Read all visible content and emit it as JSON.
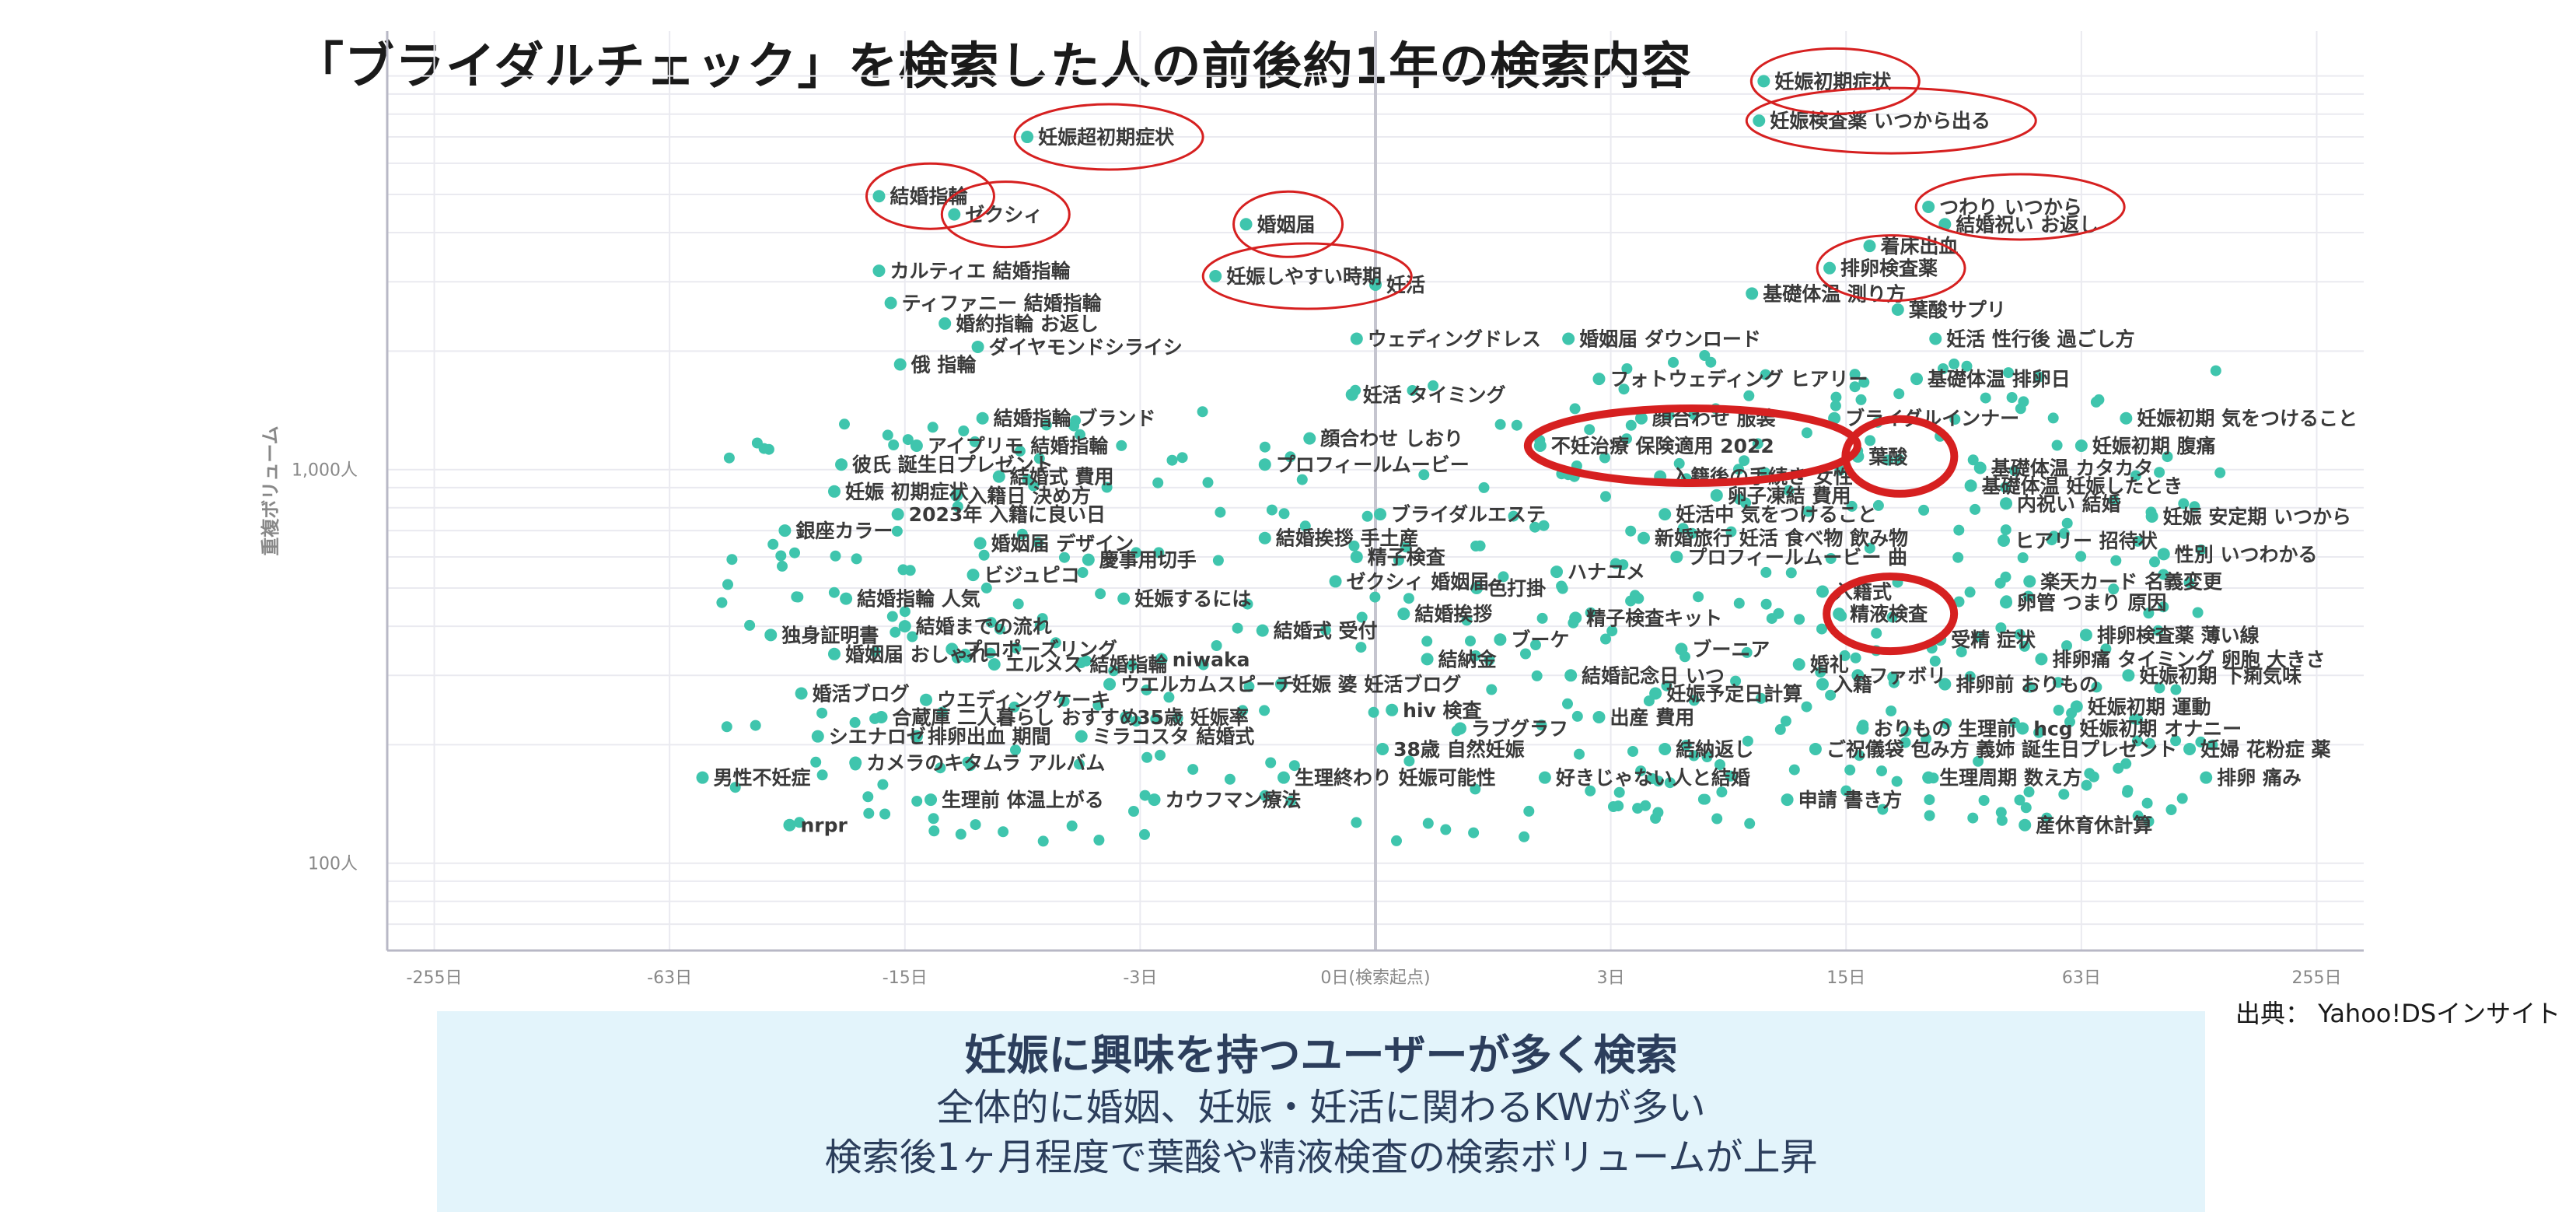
{
  "title": "「ブライダルチェック」を検索した人の前後約1年の検索内容",
  "source": "出典： Yahoo!DSインサイト",
  "summary": {
    "heading": "妊娠に興味を持つユーザーが多く検索",
    "line1": "全体的に婚姻、妊娠・妊活に関わるKWが多い",
    "line2": "検索後1ヶ月程度で葉酸や精液検査の検索ボリュームが上昇"
  },
  "colors": {
    "point": "#3fc5ad",
    "highlight": "#d62020",
    "axis": "#b8b8c6",
    "grid": "#eaeaf0",
    "text": "#3a3a3a",
    "summary_bg": "#e3f4fb",
    "summary_text": "#2c3e5c"
  },
  "chart_data": {
    "type": "scatter",
    "title": "「ブライダルチェック」を検索した人の前後約1年の検索内容",
    "xlabel": "",
    "ylabel": "重複ボリューム",
    "x_ticks": [
      "-255日",
      "-63日",
      "-15日",
      "-3日",
      "0日(検索起点)",
      "3日",
      "15日",
      "63日",
      "255日"
    ],
    "xlim": [
      -0.2,
      8.2
    ],
    "y_scale": "log",
    "y_ticks": [
      {
        "value": 100,
        "label": "100人"
      },
      {
        "value": 1000,
        "label": "1,000人"
      }
    ],
    "ylim": [
      60,
      13000
    ],
    "grid": true,
    "legend": "none",
    "labeled_points": [
      {
        "label": "妊娠初期症状",
        "x": 5.65,
        "y": 9700,
        "circled": true
      },
      {
        "label": "妊娠検査薬 いつから出る",
        "x": 5.63,
        "y": 7700,
        "circled": true
      },
      {
        "label": "妊娠超初期症状",
        "x": 2.52,
        "y": 7000,
        "circled": true
      },
      {
        "label": "結婚指輪",
        "x": 1.89,
        "y": 4950,
        "circled": true
      },
      {
        "label": "ゼクシィ",
        "x": 2.21,
        "y": 4450,
        "circled": true
      },
      {
        "label": "婚姻届",
        "x": 3.45,
        "y": 4200,
        "circled": true
      },
      {
        "label": "つわり いつから",
        "x": 6.35,
        "y": 4650,
        "circled": true
      },
      {
        "label": "結婚祝い お返し",
        "x": 6.42,
        "y": 4200,
        "circled": false
      },
      {
        "label": "着床出血",
        "x": 6.1,
        "y": 3700,
        "circled": false
      },
      {
        "label": "排卵検査薬",
        "x": 5.93,
        "y": 3250,
        "circled": true
      },
      {
        "label": "カルティエ 結婚指輪",
        "x": 1.89,
        "y": 3200,
        "circled": false
      },
      {
        "label": "妊娠しやすい時期",
        "x": 3.32,
        "y": 3100,
        "circled": true
      },
      {
        "label": "妊活",
        "x": 4.0,
        "y": 2950,
        "circled": false
      },
      {
        "label": "基礎体温 測り方",
        "x": 5.6,
        "y": 2800,
        "circled": false
      },
      {
        "label": "ティファニー 結婚指輪",
        "x": 1.94,
        "y": 2650,
        "circled": false
      },
      {
        "label": "葉酸サプリ",
        "x": 6.22,
        "y": 2550,
        "circled": false
      },
      {
        "label": "婚約指輪 お返し",
        "x": 2.17,
        "y": 2350,
        "circled": false
      },
      {
        "label": "ウェディングドレス",
        "x": 3.92,
        "y": 2150,
        "circled": false
      },
      {
        "label": "婚姻届 ダウンロード",
        "x": 4.82,
        "y": 2150,
        "circled": false
      },
      {
        "label": "妊活 性行後 過ごし方",
        "x": 6.38,
        "y": 2150,
        "circled": false
      },
      {
        "label": "ダイヤモンドシライシ",
        "x": 2.31,
        "y": 2050,
        "circled": false
      },
      {
        "label": "俄 指輪",
        "x": 1.98,
        "y": 1850,
        "circled": false
      },
      {
        "label": "フォトウェディング ヒアリー",
        "x": 4.95,
        "y": 1700,
        "circled": false
      },
      {
        "label": "基礎体温 排卵日",
        "x": 6.3,
        "y": 1700,
        "circled": false
      },
      {
        "label": "妊活 タイミング",
        "x": 3.9,
        "y": 1550,
        "circled": false
      },
      {
        "label": "結婚指輪 ブランド",
        "x": 2.33,
        "y": 1350,
        "circled": false
      },
      {
        "label": "顔合わせ 服装",
        "x": 5.13,
        "y": 1350,
        "circled": false
      },
      {
        "label": "ブライダルインナー",
        "x": 5.95,
        "y": 1350,
        "circled": false
      },
      {
        "label": "妊娠初期 気をつけること",
        "x": 7.19,
        "y": 1350,
        "circled": false
      },
      {
        "label": "顔合わせ しおり",
        "x": 3.72,
        "y": 1200,
        "circled": false
      },
      {
        "label": "アイプリモ 結婚指輪",
        "x": 2.05,
        "y": 1150,
        "circled": false
      },
      {
        "label": "不妊治療 保険適用 2022",
        "x": 4.7,
        "y": 1150,
        "circled": true
      },
      {
        "label": "妊娠初期 腹痛",
        "x": 7.0,
        "y": 1150,
        "circled": false
      },
      {
        "label": "葉酸",
        "x": 6.05,
        "y": 1080,
        "circled": true
      },
      {
        "label": "彼氏 誕生日プレゼント",
        "x": 1.73,
        "y": 1030,
        "circled": false
      },
      {
        "label": "プロフィールムービー",
        "x": 3.53,
        "y": 1030,
        "circled": false
      },
      {
        "label": "基礎体温 カタカタ",
        "x": 6.57,
        "y": 1010,
        "circled": false
      },
      {
        "label": "入籍後の手続き 女性",
        "x": 5.21,
        "y": 960,
        "circled": false
      },
      {
        "label": "結婚式 費用",
        "x": 2.4,
        "y": 960,
        "circled": false
      },
      {
        "label": "基礎体温 妊娠したとき",
        "x": 6.53,
        "y": 910,
        "circled": false
      },
      {
        "label": "妊娠 初期症状",
        "x": 1.7,
        "y": 880,
        "circled": false
      },
      {
        "label": "入籍日 決め方",
        "x": 2.22,
        "y": 860,
        "circled": false
      },
      {
        "label": "卵子凍結 費用",
        "x": 5.45,
        "y": 860,
        "circled": false
      },
      {
        "label": "内祝い 結婚",
        "x": 6.68,
        "y": 820,
        "circled": false
      },
      {
        "label": "2023年 入籍に良い日",
        "x": 1.97,
        "y": 770,
        "circled": false
      },
      {
        "label": "ブライダルエステ",
        "x": 4.02,
        "y": 770,
        "circled": false
      },
      {
        "label": "妊活中 気をつけること",
        "x": 5.23,
        "y": 770,
        "circled": false
      },
      {
        "label": "妊娠 安定期 いつから",
        "x": 7.3,
        "y": 760,
        "circled": false
      },
      {
        "label": "銀座カラー",
        "x": 1.49,
        "y": 700,
        "circled": false
      },
      {
        "label": "結婚挨拶 手土産",
        "x": 3.53,
        "y": 670,
        "circled": false
      },
      {
        "label": "新婚旅行 妊活 食べ物 飲み物",
        "x": 5.14,
        "y": 670,
        "circled": false
      },
      {
        "label": "ヒアリー 招待状",
        "x": 6.67,
        "y": 660,
        "circled": false
      },
      {
        "label": "婚姻届 デザイン",
        "x": 2.32,
        "y": 650,
        "circled": false
      },
      {
        "label": "精子検査",
        "x": 3.92,
        "y": 600,
        "circled": false
      },
      {
        "label": "慶事用切手",
        "x": 2.78,
        "y": 590,
        "circled": false
      },
      {
        "label": "プロフィールムービー 曲",
        "x": 5.28,
        "y": 600,
        "circled": false
      },
      {
        "label": "性別 いつわかる",
        "x": 7.35,
        "y": 610,
        "circled": false
      },
      {
        "label": "ハナユメ",
        "x": 4.77,
        "y": 550,
        "circled": false
      },
      {
        "label": "ビジュピコ",
        "x": 2.29,
        "y": 540,
        "circled": false
      },
      {
        "label": "ゼクシィ 婚姻届",
        "x": 3.83,
        "y": 520,
        "circled": false
      },
      {
        "label": "楽天カード 名義変更",
        "x": 6.78,
        "y": 520,
        "circled": false
      },
      {
        "label": "色打掛",
        "x": 4.43,
        "y": 500,
        "circled": false
      },
      {
        "label": "入籍式",
        "x": 5.9,
        "y": 490,
        "circled": false
      },
      {
        "label": "結婚指輪 人気",
        "x": 1.75,
        "y": 470,
        "circled": false
      },
      {
        "label": "妊娠するには",
        "x": 2.93,
        "y": 470,
        "circled": false
      },
      {
        "label": "卵管 つまり 原因",
        "x": 6.68,
        "y": 460,
        "circled": false
      },
      {
        "label": "精液検査",
        "x": 5.97,
        "y": 430,
        "circled": true
      },
      {
        "label": "結婚挨拶",
        "x": 4.12,
        "y": 430,
        "circled": false
      },
      {
        "label": "精子検査キット",
        "x": 4.85,
        "y": 420,
        "circled": false
      },
      {
        "label": "結婚までの流れ",
        "x": 2.0,
        "y": 400,
        "circled": false
      },
      {
        "label": "結婚式 受付",
        "x": 3.52,
        "y": 390,
        "circled": false
      },
      {
        "label": "排卵検査薬 薄い線",
        "x": 7.02,
        "y": 380,
        "circled": false
      },
      {
        "label": "独身証明書",
        "x": 1.43,
        "y": 380,
        "circled": false
      },
      {
        "label": "ブーケ",
        "x": 4.53,
        "y": 370,
        "circled": false
      },
      {
        "label": "受精 症状",
        "x": 6.4,
        "y": 370,
        "circled": false
      },
      {
        "label": "プロポーズリング",
        "x": 2.2,
        "y": 350,
        "circled": false
      },
      {
        "label": "ブーニア",
        "x": 5.3,
        "y": 350,
        "circled": false
      },
      {
        "label": "婚姻届 おしゃれ",
        "x": 1.7,
        "y": 340,
        "circled": false
      },
      {
        "label": "結納金",
        "x": 4.22,
        "y": 330,
        "circled": false
      },
      {
        "label": "niwaka",
        "x": 3.09,
        "y": 330,
        "circled": false
      },
      {
        "label": "排卵痛 タイミング 卵胞 大きさ",
        "x": 6.83,
        "y": 330,
        "circled": false
      },
      {
        "label": "エルメス 結婚指輪",
        "x": 2.38,
        "y": 320,
        "circled": false
      },
      {
        "label": "婚礼",
        "x": 5.8,
        "y": 320,
        "circled": false
      },
      {
        "label": "結婚記念日 いつ",
        "x": 4.83,
        "y": 300,
        "circled": false
      },
      {
        "label": "ファボリ",
        "x": 6.05,
        "y": 300,
        "circled": false
      },
      {
        "label": "妊娠初期 下痢気味",
        "x": 7.2,
        "y": 300,
        "circled": false
      },
      {
        "label": "ウエルカムスピーチ",
        "x": 2.87,
        "y": 285,
        "circled": false
      },
      {
        "label": "妊娠 婆 妊活ブログ",
        "x": 3.6,
        "y": 285,
        "circled": false
      },
      {
        "label": "入籍",
        "x": 5.9,
        "y": 285,
        "circled": false
      },
      {
        "label": "排卵前 おりもの",
        "x": 6.42,
        "y": 285,
        "circled": false
      },
      {
        "label": "婚活ブログ",
        "x": 1.56,
        "y": 270,
        "circled": false
      },
      {
        "label": "妊娠予定日計算",
        "x": 5.19,
        "y": 270,
        "circled": false
      },
      {
        "label": "ウエディングケーキ",
        "x": 2.09,
        "y": 260,
        "circled": false
      },
      {
        "label": "妊娠初期 運動",
        "x": 6.98,
        "y": 250,
        "circled": false
      },
      {
        "label": "hiv 検査",
        "x": 4.07,
        "y": 245,
        "circled": false
      },
      {
        "label": "合蔵庫 二人暮らし おすすめ",
        "x": 1.9,
        "y": 235,
        "circled": false
      },
      {
        "label": "35歳 妊娠率",
        "x": 2.94,
        "y": 235,
        "circled": false
      },
      {
        "label": "出産 費用",
        "x": 4.95,
        "y": 235,
        "circled": false
      },
      {
        "label": "ラブグラフ",
        "x": 4.36,
        "y": 220,
        "circled": false
      },
      {
        "label": "おりもの 生理前",
        "x": 6.07,
        "y": 220,
        "circled": false
      },
      {
        "label": "hcg 妊娠初期 オナニー",
        "x": 6.75,
        "y": 220,
        "circled": false
      },
      {
        "label": "シエナロゼ",
        "x": 1.63,
        "y": 210,
        "circled": false
      },
      {
        "label": "排卵出血 期間",
        "x": 2.05,
        "y": 210,
        "circled": false
      },
      {
        "label": "ミラコスタ 結婚式",
        "x": 2.75,
        "y": 210,
        "circled": false
      },
      {
        "label": "38歳 自然妊娠",
        "x": 4.03,
        "y": 195,
        "circled": false
      },
      {
        "label": "結納返し",
        "x": 5.23,
        "y": 195,
        "circled": false
      },
      {
        "label": "ご祝儀袋 包み方 義姉 誕生日プレゼント",
        "x": 5.87,
        "y": 195,
        "circled": false
      },
      {
        "label": "妊婦 花粉症 薬",
        "x": 7.46,
        "y": 195,
        "circled": false
      },
      {
        "label": "カメラのキタムラ アルバム",
        "x": 1.79,
        "y": 180,
        "circled": false
      },
      {
        "label": "生理終わり 妊娠可能性",
        "x": 3.61,
        "y": 165,
        "circled": false
      },
      {
        "label": "好きじゃない人と結婚",
        "x": 4.72,
        "y": 165,
        "circled": false
      },
      {
        "label": "生理周期 数え方",
        "x": 6.35,
        "y": 165,
        "circled": false
      },
      {
        "label": "排卵 痛み",
        "x": 7.53,
        "y": 165,
        "circled": false
      },
      {
        "label": "男性不妊症",
        "x": 1.14,
        "y": 165,
        "circled": false
      },
      {
        "label": "生理前 体温上がる",
        "x": 2.11,
        "y": 145,
        "circled": false
      },
      {
        "label": "カウフマン療法",
        "x": 3.06,
        "y": 145,
        "circled": false
      },
      {
        "label": "申請 書き方",
        "x": 5.75,
        "y": 145,
        "circled": false
      },
      {
        "label": "nrpr",
        "x": 1.51,
        "y": 125,
        "circled": false
      },
      {
        "label": "産休育休計算",
        "x": 6.76,
        "y": 125,
        "circled": false
      }
    ],
    "unlabeled_point_count": 420
  }
}
